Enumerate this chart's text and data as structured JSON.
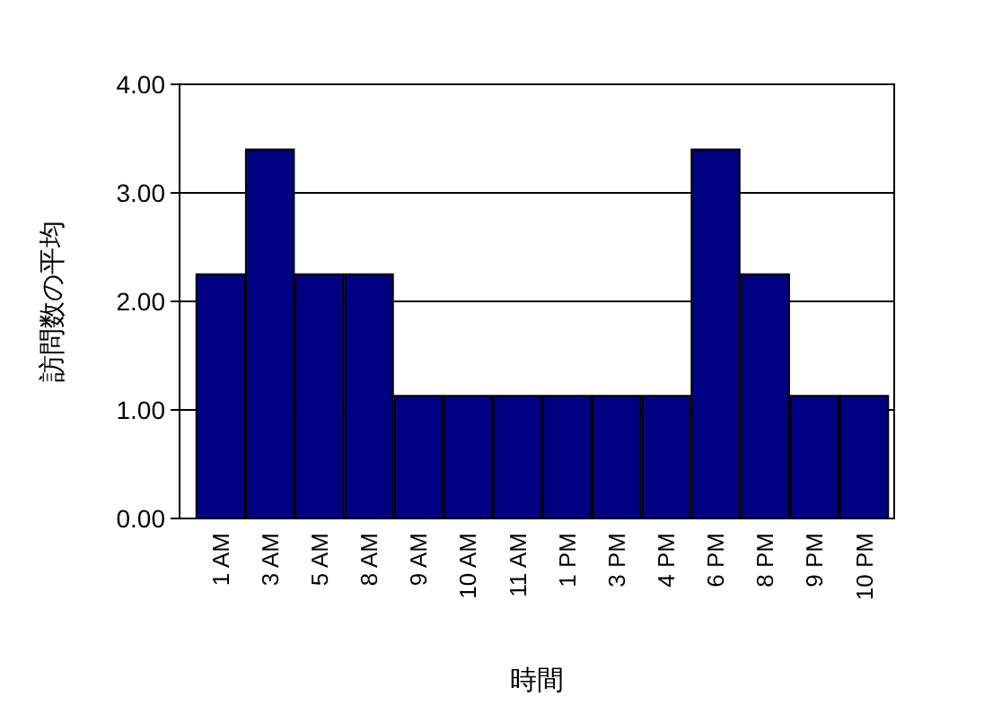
{
  "chart_data": {
    "type": "bar",
    "xlabel": "時間",
    "ylabel": "訪問数の平均",
    "categories": [
      "1 AM",
      "3 AM",
      "5 AM",
      "8 AM",
      "9 AM",
      "10 AM",
      "11 AM",
      "1 PM",
      "3 PM",
      "4 PM",
      "6 PM",
      "8 PM",
      "9 PM",
      "10 PM"
    ],
    "values": [
      2.25,
      3.4,
      2.25,
      2.25,
      1.13,
      1.13,
      1.13,
      1.13,
      1.13,
      1.13,
      3.4,
      2.25,
      1.13,
      1.13
    ],
    "color": "#000080",
    "ylim": [
      0,
      4
    ],
    "yticks": [
      {
        "value": 0,
        "label": "0.00"
      },
      {
        "value": 1,
        "label": "1.00"
      },
      {
        "value": 2,
        "label": "2.00"
      },
      {
        "value": 3,
        "label": "3.00"
      },
      {
        "value": 4,
        "label": "4.00"
      }
    ],
    "grid": "y"
  }
}
